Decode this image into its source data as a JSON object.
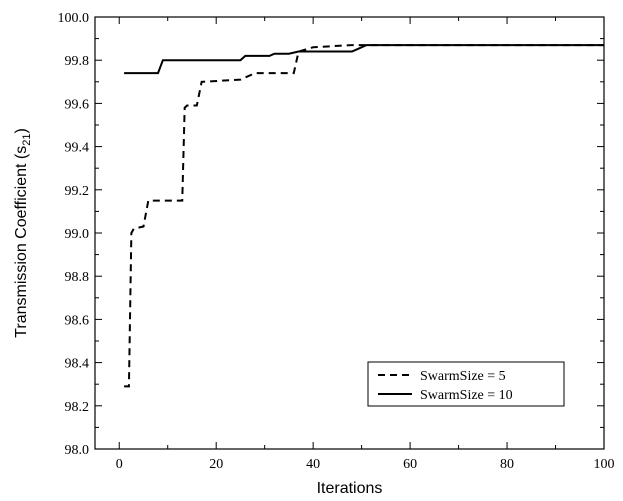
{
  "chart_data": {
    "type": "line",
    "xlabel": "Iterations",
    "ylabel_main": "Transmission Coefficient (s",
    "ylabel_sub": "21",
    "ylabel_close": ")",
    "xlim": [
      -5,
      100
    ],
    "ylim": [
      98.0,
      100.0
    ],
    "xticks": [
      0,
      20,
      40,
      60,
      80,
      100
    ],
    "yticks": [
      98.0,
      98.2,
      98.4,
      98.6,
      98.8,
      99.0,
      99.2,
      99.4,
      99.6,
      99.8,
      100.0
    ],
    "xtick_labels": [
      "0",
      "20",
      "40",
      "60",
      "80",
      "100"
    ],
    "ytick_labels": [
      "98.0",
      "98.2",
      "98.4",
      "98.6",
      "98.8",
      "99.0",
      "99.2",
      "99.4",
      "99.6",
      "99.8",
      "100.0"
    ],
    "legend_placement": "bottom-right",
    "grid": false,
    "series": [
      {
        "name": "SwarmSize = 5",
        "style": "dashed",
        "color": "#000000",
        "points": [
          [
            1,
            98.29
          ],
          [
            2,
            98.29
          ],
          [
            2.5,
            99.0
          ],
          [
            3,
            99.02
          ],
          [
            5,
            99.03
          ],
          [
            6,
            99.15
          ],
          [
            13,
            99.15
          ],
          [
            13.5,
            99.58
          ],
          [
            14,
            99.59
          ],
          [
            16,
            99.59
          ],
          [
            17,
            99.7
          ],
          [
            25,
            99.71
          ],
          [
            26,
            99.72
          ],
          [
            28,
            99.74
          ],
          [
            36,
            99.74
          ],
          [
            37,
            99.84
          ],
          [
            40,
            99.86
          ],
          [
            48,
            99.87
          ],
          [
            51,
            99.87
          ],
          [
            100,
            99.87
          ]
        ]
      },
      {
        "name": "SwarmSize = 10",
        "style": "solid",
        "color": "#000000",
        "points": [
          [
            1,
            99.74
          ],
          [
            8,
            99.74
          ],
          [
            9,
            99.8
          ],
          [
            25,
            99.8
          ],
          [
            26,
            99.82
          ],
          [
            31,
            99.82
          ],
          [
            32,
            99.83
          ],
          [
            35,
            99.83
          ],
          [
            37,
            99.84
          ],
          [
            48,
            99.84
          ],
          [
            49,
            99.85
          ],
          [
            51,
            99.87
          ],
          [
            100,
            99.87
          ]
        ]
      }
    ]
  }
}
